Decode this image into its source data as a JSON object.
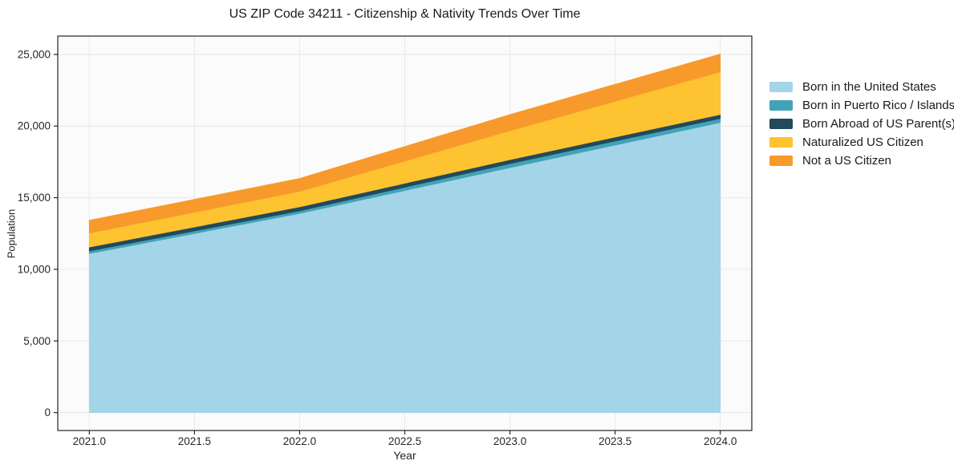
{
  "chart_data": {
    "type": "area",
    "stacked": true,
    "title": "US ZIP Code 34211 - Citizenship & Nativity Trends Over Time",
    "xlabel": "Year",
    "ylabel": "Population",
    "x": [
      2021,
      2022,
      2023,
      2024
    ],
    "series": [
      {
        "name": "Born in the United States",
        "color": "#a4d4e8",
        "values": [
          11100,
          13900,
          17100,
          20250
        ]
      },
      {
        "name": "Born in Puerto Rico / Islands",
        "color": "#41a3b8",
        "values": [
          180,
          180,
          280,
          280
        ]
      },
      {
        "name": "Born Abroad of US Parent(s)",
        "color": "#23495c",
        "values": [
          270,
          280,
          280,
          280
        ]
      },
      {
        "name": "Naturalized US Citizen",
        "color": "#fdc330",
        "values": [
          980,
          1080,
          2020,
          2980
        ]
      },
      {
        "name": "Not a US Citizen",
        "color": "#f8992b",
        "values": [
          890,
          900,
          1120,
          1240
        ]
      }
    ],
    "xlim": [
      2020.85,
      2024.15
    ],
    "ylim": [
      -1251,
      26281
    ],
    "x_ticks": {
      "values": [
        2021.0,
        2021.5,
        2022.0,
        2022.5,
        2023.0,
        2023.5,
        2024.0
      ],
      "labels": [
        "2021.0",
        "2021.5",
        "2022.0",
        "2022.5",
        "2023.0",
        "2023.5",
        "2024.0"
      ]
    },
    "y_ticks": {
      "values": [
        0,
        5000,
        10000,
        15000,
        20000,
        25000
      ],
      "labels": [
        "0",
        "5,000",
        "10,000",
        "15,000",
        "20,000",
        "25,000"
      ]
    },
    "grid": true,
    "legend_position": "right outside",
    "colors": {
      "grid": "#e8e8e8",
      "plot_background": "#fbfbfb",
      "spine": "#262626",
      "tick_label": "#262626"
    }
  }
}
